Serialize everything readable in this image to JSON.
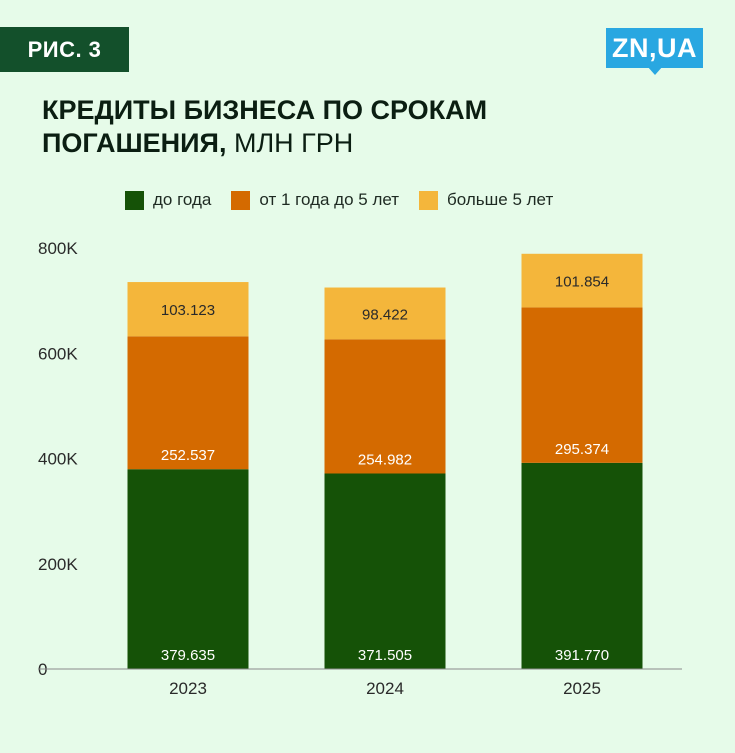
{
  "badge": "РИС. 3",
  "logo": "ZN,UA",
  "title": {
    "bold": "КРЕДИТЫ БИЗНЕСА ПО СРОКАМ ПОГАШЕНИЯ,",
    "light": " МЛН ГРН"
  },
  "colors": {
    "background": "#e6fbe9",
    "series": [
      "#155207",
      "#d46a00",
      "#f4b63b"
    ],
    "badge": "#13502b",
    "logo": "#29a7e1"
  },
  "chart_data": {
    "type": "bar",
    "stacked": true,
    "categories": [
      "2023",
      "2024",
      "2025"
    ],
    "series": [
      {
        "name": "до года",
        "values": [
          379.635,
          371.505,
          391.77
        ],
        "labels": [
          "379.635",
          "371.505",
          "391.770"
        ]
      },
      {
        "name": "от 1 года до 5 лет",
        "values": [
          252.537,
          254.982,
          295.374
        ],
        "labels": [
          "252.537",
          "254.982",
          "295.374"
        ]
      },
      {
        "name": "больше 5 лет",
        "values": [
          103.123,
          98.422,
          101.854
        ],
        "labels": [
          "103.123",
          "98.422",
          "101.854"
        ]
      }
    ],
    "yticks": [
      0,
      200,
      400,
      600,
      800
    ],
    "ytick_labels": [
      "0",
      "200K",
      "400K",
      "600K",
      "800K"
    ],
    "ylim": [
      0,
      800
    ],
    "grid": false,
    "legend_position": "top"
  }
}
